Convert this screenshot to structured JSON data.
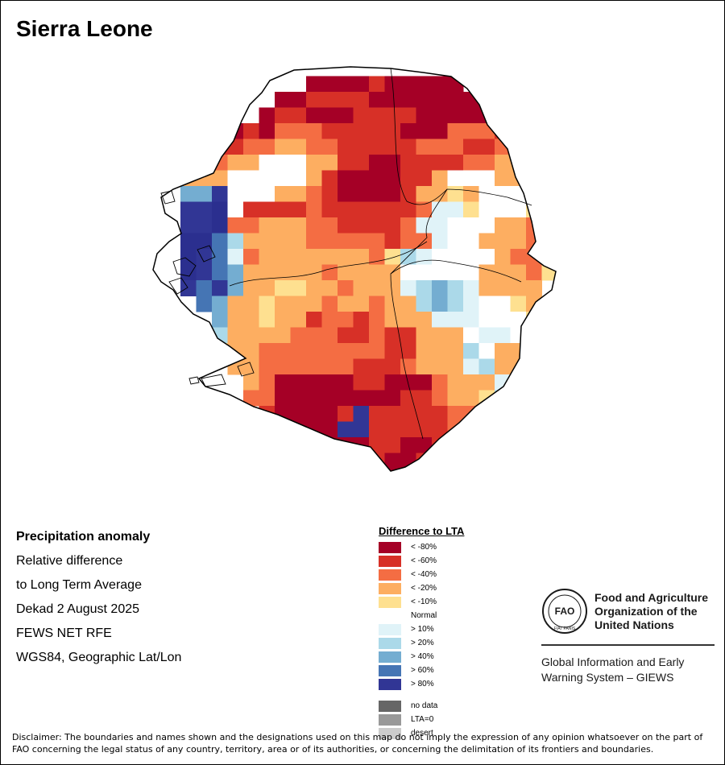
{
  "title": "Sierra Leone",
  "info": {
    "heading": "Precipitation anomaly",
    "line1": "Relative difference",
    "line2": "to Long Term Average",
    "period": "Dekad 2 August 2025",
    "source": "FEWS NET RFE",
    "projection": "WGS84, Geographic Lat/Lon"
  },
  "legend": {
    "title": "Difference to LTA",
    "items": [
      {
        "label": "< -80%",
        "color": "#a50026"
      },
      {
        "label": "< -60%",
        "color": "#d73027"
      },
      {
        "label": "< -40%",
        "color": "#f46d43"
      },
      {
        "label": "< -20%",
        "color": "#fdae61"
      },
      {
        "label": "< -10%",
        "color": "#fee090"
      },
      {
        "label": "Normal",
        "color": "#ffffff"
      },
      {
        "label": "> 10%",
        "color": "#e0f3f8"
      },
      {
        "label": "> 20%",
        "color": "#abd9e9"
      },
      {
        "label": "> 40%",
        "color": "#74add1"
      },
      {
        "label": "> 60%",
        "color": "#4575b4"
      },
      {
        "label": "> 80%",
        "color": "#313695"
      }
    ],
    "extra": [
      {
        "label": "no data",
        "color": "#666666"
      },
      {
        "label": "LTA=0",
        "color": "#999999"
      },
      {
        "label": "desert",
        "color": "#cccccc"
      }
    ]
  },
  "map_grid": {
    "rows": [
      "..........................",
      "..........AAAABAAAAA......",
      "........AABBBBAAAAAAAA....",
      ".......ABBAAABBBBAAAAAAA..",
      ".....ABACCCBBBBBAAACCCBBA.",
      "....BBCCDDCCBBBBBCCCBBCCB.",
      "...BCDDNNNDDBBAABBBBCCDDDC",
      "..DDDNNNNNDBAAAABBDNNNDDCD",
      "..HHJNNNDDCBAAAABDDEDNNNEC",
      "..JJKNBBBBCBBBBBBCFFENNNEC",
      "..JJKCCDDDCCBBBBCFFNNNDDCC",
      "..KKIGDDDDCCCCCBCCFNNDDDCC",
      "..KJIFCDDDDDDDCEGFNNNNDCCD",
      "..KJIHDDDDDCDDDDNNNNNDDDCE",
      "..JIJHDDEEDDCDDDFGHGFDDDD.",
      "...IHDDEDDDCDDCDDGHGFNNED.",
      "....HDDEDDBCCBCDDDFFFNNNE.",
      "....GDDDDCCCBBCBBDDDNFFNN.",
      "....EDDCCCCCCCCBBDDDGNDDE.",
      ".....DDCCCCCCBBBCDDDFGDDE.",
      "......DCAAAAABBAAACDDDFEDD",
      "......CCAAAAAAAABBCDDEGEDD",
      ".......BAAAABJBBBBBCCCEDD.",
      "........AAAAJJBBBBBCDD....",
      ".........BAAAABBAABBC.....",
      "............BBBAABBB......",
      "..............BAAAB.......",
      "...............AAA........",
      "................A........."
    ],
    "codes": {
      "A": "#a50026",
      "B": "#d73027",
      "C": "#f46d43",
      "D": "#fdae61",
      "E": "#fee090",
      "N": "#ffffff",
      "F": "#e0f3f8",
      "G": "#abd9e9",
      "H": "#74add1",
      "I": "#4575b4",
      "J": "#313695",
      "K": "#2b2f8f"
    }
  },
  "fao": {
    "name_line1": "Food and Agriculture",
    "name_line2": "Organization of the",
    "name_line3": "United Nations",
    "system_line1": "Global Information and Early",
    "system_line2": "Warning System – GIEWS",
    "motto": "FIAT PANIS"
  },
  "disclaimer": "Disclaimer: The boundaries and names shown and the designations used on this map do not imply the expression of any opinion whatsoever on the part of FAO concerning the legal status of any country, territory, area or of its authorities, or concerning the delimitation of its frontiers and boundaries."
}
